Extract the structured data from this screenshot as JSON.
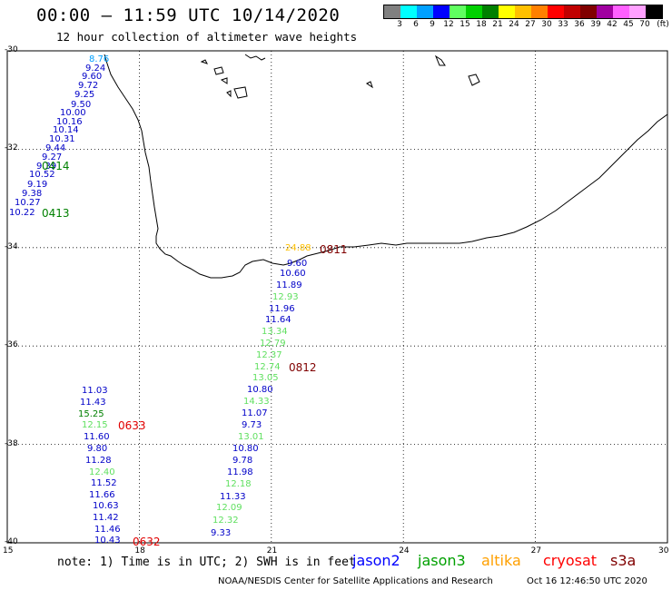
{
  "header": {
    "title": "00:00 – 11:59 UTC 10/14/2020",
    "subtitle": "12 hour collection of altimeter wave heights"
  },
  "colorbar": {
    "unit": "(ft)",
    "colors": [
      "#808080",
      "#00ffff",
      "#00a0ff",
      "#0000ff",
      "#60ff60",
      "#00d000",
      "#008000",
      "#ffff00",
      "#ffc000",
      "#ff8000",
      "#ff0000",
      "#c00000",
      "#800000",
      "#a000a0",
      "#ff60ff",
      "#ffa0ff",
      "#000000"
    ],
    "labels": [
      "3",
      "6",
      "9",
      "12",
      "15",
      "18",
      "21",
      "24",
      "27",
      "30",
      "33",
      "36",
      "39",
      "42",
      "45",
      "70"
    ]
  },
  "axes": {
    "lat_labels": [
      "-30",
      "-32",
      "-34",
      "-36",
      "-38",
      "-40"
    ],
    "lon_labels": [
      "15",
      "18",
      "21",
      "24",
      "27",
      "30"
    ]
  },
  "chart_data": {
    "type": "scatter",
    "xlim": [
      15,
      30
    ],
    "ylim": [
      -40,
      -30
    ],
    "xlabel": "",
    "ylabel": "",
    "grid": true
  },
  "observations": [
    {
      "text": "8.76",
      "color": "#00a0ff"
    },
    {
      "text": "9.24",
      "color": "#0000c8"
    },
    {
      "text": "9.60",
      "color": "#0000c8"
    },
    {
      "text": "9.72",
      "color": "#0000c8"
    },
    {
      "text": "9.25",
      "color": "#0000c8"
    },
    {
      "text": "9.50",
      "color": "#0000c8"
    },
    {
      "text": "10.00",
      "color": "#0000c8"
    },
    {
      "text": "10.16",
      "color": "#0000c8"
    },
    {
      "text": "10.14",
      "color": "#0000c8"
    },
    {
      "text": "10.31",
      "color": "#0000c8"
    },
    {
      "text": "9.44",
      "color": "#0000c8"
    },
    {
      "text": "9.27",
      "color": "#0000c8"
    },
    {
      "text": "9.39",
      "color": "#0000c8"
    },
    {
      "text": "10.52",
      "color": "#0000c8"
    },
    {
      "text": "9.19",
      "color": "#0000c8"
    },
    {
      "text": "9.38",
      "color": "#0000c8"
    },
    {
      "text": "10.27",
      "color": "#0000c8"
    },
    {
      "text": "10.22",
      "color": "#0000c8"
    },
    {
      "text": "24.88",
      "color": "#ffc000"
    },
    {
      "text": "9.60",
      "color": "#0000c8"
    },
    {
      "text": "10.60",
      "color": "#0000c8"
    },
    {
      "text": "11.89",
      "color": "#0000c8"
    },
    {
      "text": "12.93",
      "color": "#60e060"
    },
    {
      "text": "11.96",
      "color": "#0000c8"
    },
    {
      "text": "11.64",
      "color": "#0000c8"
    },
    {
      "text": "13.34",
      "color": "#60e060"
    },
    {
      "text": "12.79",
      "color": "#60e060"
    },
    {
      "text": "12.37",
      "color": "#60e060"
    },
    {
      "text": "12.74",
      "color": "#60e060"
    },
    {
      "text": "13.05",
      "color": "#60e060"
    },
    {
      "text": "10.80",
      "color": "#0000c8"
    },
    {
      "text": "14.33",
      "color": "#60e060"
    },
    {
      "text": "11.07",
      "color": "#0000c8"
    },
    {
      "text": "9.73",
      "color": "#0000c8"
    },
    {
      "text": "13.01",
      "color": "#60e060"
    },
    {
      "text": "10.80",
      "color": "#0000c8"
    },
    {
      "text": "9.78",
      "color": "#0000c8"
    },
    {
      "text": "11.98",
      "color": "#0000c8"
    },
    {
      "text": "12.18",
      "color": "#60e060"
    },
    {
      "text": "11.33",
      "color": "#0000c8"
    },
    {
      "text": "12.09",
      "color": "#60e060"
    },
    {
      "text": "12.32",
      "color": "#60e060"
    },
    {
      "text": "9.33",
      "color": "#0000c8"
    },
    {
      "text": "11.03",
      "color": "#0000c8"
    },
    {
      "text": "11.43",
      "color": "#0000c8"
    },
    {
      "text": "15.25",
      "color": "#008000"
    },
    {
      "text": "12.15",
      "color": "#60e060"
    },
    {
      "text": "11.60",
      "color": "#0000c8"
    },
    {
      "text": "9.80",
      "color": "#0000c8"
    },
    {
      "text": "11.28",
      "color": "#0000c8"
    },
    {
      "text": "12.40",
      "color": "#60e060"
    },
    {
      "text": "11.52",
      "color": "#0000c8"
    },
    {
      "text": "11.66",
      "color": "#0000c8"
    },
    {
      "text": "10.63",
      "color": "#0000c8"
    },
    {
      "text": "11.42",
      "color": "#0000c8"
    },
    {
      "text": "11.46",
      "color": "#0000c8"
    },
    {
      "text": "10.43",
      "color": "#0000c8"
    }
  ],
  "pass_times": [
    {
      "text": "0414",
      "color": "#008000"
    },
    {
      "text": "0413",
      "color": "#008000"
    },
    {
      "text": "0811",
      "color": "#800000"
    },
    {
      "text": "0812",
      "color": "#800000"
    },
    {
      "text": "0633",
      "color": "#e00000"
    },
    {
      "text": "0632",
      "color": "#e00000"
    }
  ],
  "footer": {
    "note": "note: 1) Time is in UTC; 2) SWH is in feet",
    "satellites": [
      {
        "name": "jason2",
        "color": "#0000ff"
      },
      {
        "name": "jason3",
        "color": "#00a000"
      },
      {
        "name": "altika",
        "color": "#ffa000"
      },
      {
        "name": "cryosat",
        "color": "#ff0000"
      },
      {
        "name": "s3a",
        "color": "#800000"
      }
    ],
    "credit": "NOAA/NESDIS Center for Satellite Applications and Research",
    "timestamp": "Oct 16 12:46:50 UTC 2020"
  }
}
